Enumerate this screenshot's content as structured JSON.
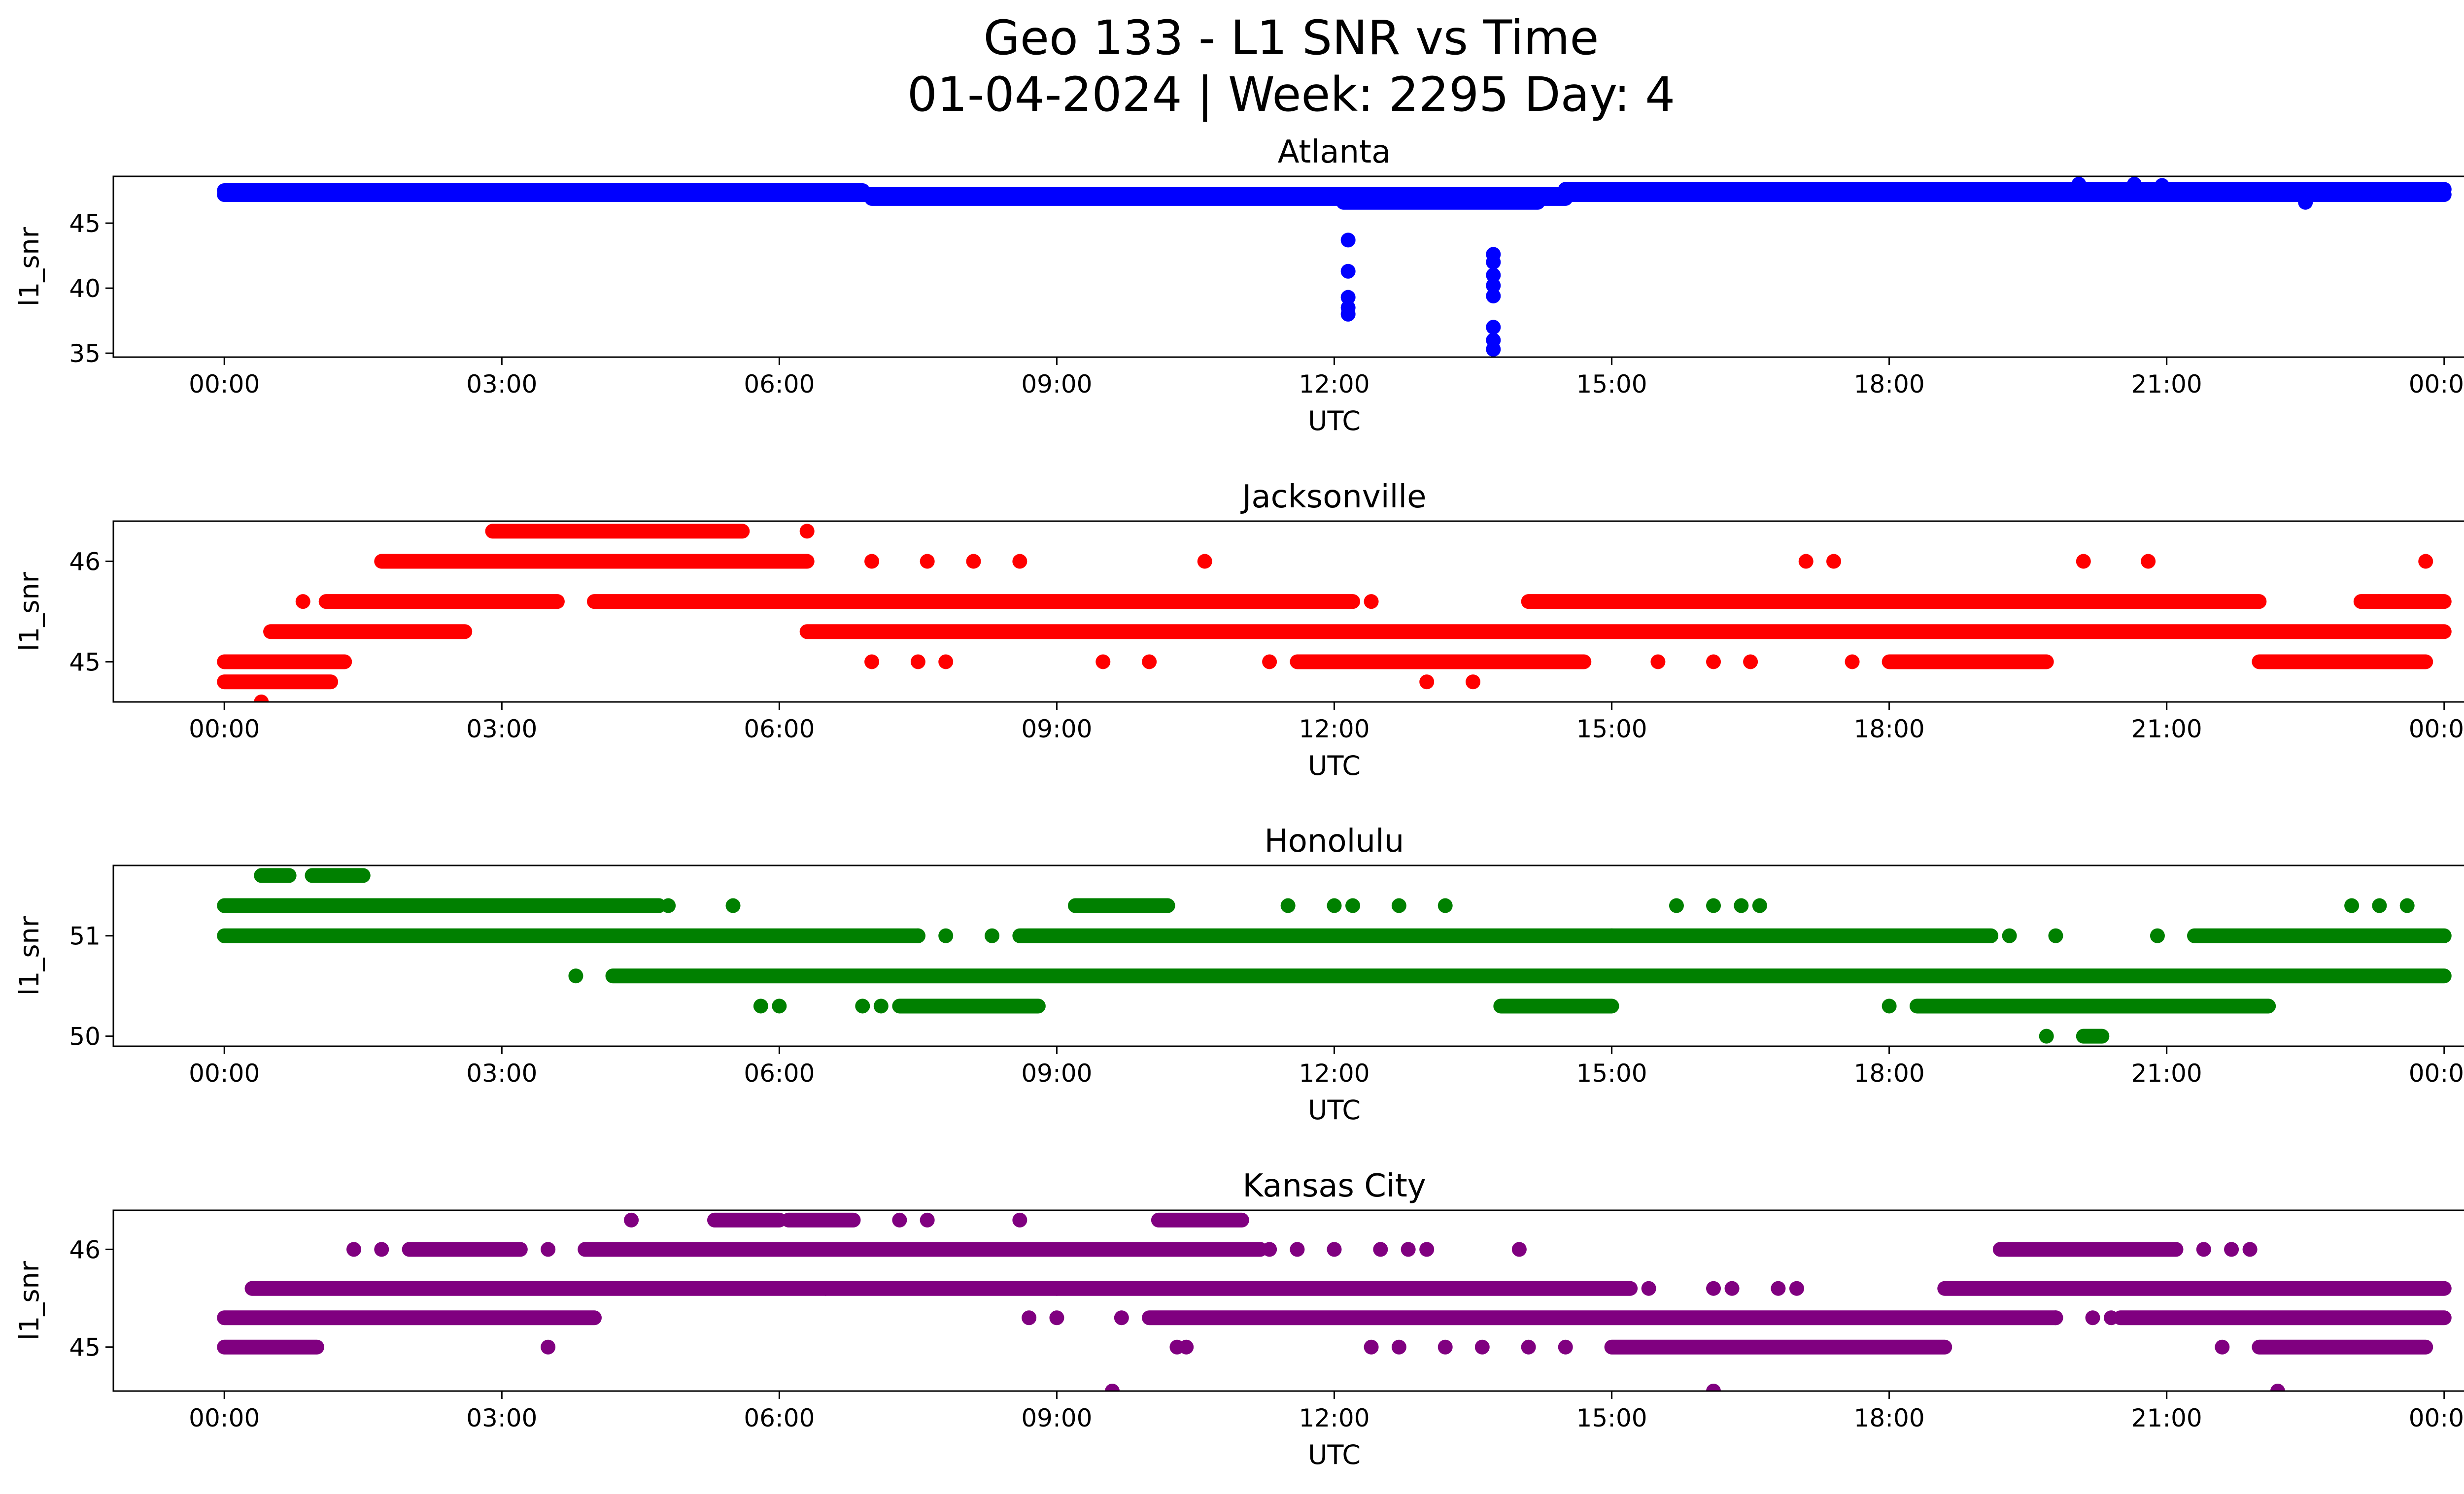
{
  "figure": {
    "title_line1": "Geo 133 - L1 SNR vs Time",
    "title_line2": "01-04-2024 | Week: 2295 Day: 4"
  },
  "chart_data": [
    {
      "type": "scatter",
      "title": "Atlanta",
      "xlabel": "UTC",
      "ylabel": "l1_snr",
      "color": "#0000ff",
      "xlim_hours": [
        -1.2,
        25.2
      ],
      "ylim": [
        34.7,
        48.6
      ],
      "yticks": [
        35,
        40,
        45
      ],
      "xticks": [
        "00:00",
        "03:00",
        "06:00",
        "09:00",
        "12:00",
        "15:00",
        "18:00",
        "21:00",
        "00:00"
      ],
      "bands": [
        {
          "y": 47.5,
          "ranges": [
            [
              0.0,
              6.9
            ]
          ]
        },
        {
          "y": 47.2,
          "ranges": [
            [
              0.0,
              24.0
            ]
          ]
        },
        {
          "y": 46.9,
          "ranges": [
            [
              7.0,
              14.5
            ]
          ]
        },
        {
          "y": 46.6,
          "ranges": [
            [
              12.1,
              14.2
            ]
          ]
        },
        {
          "y": 47.6,
          "ranges": [
            [
              14.5,
              24.0
            ]
          ]
        }
      ],
      "points": [
        {
          "x": 12.15,
          "y": 43.7
        },
        {
          "x": 12.15,
          "y": 41.3
        },
        {
          "x": 12.15,
          "y": 39.3
        },
        {
          "x": 12.15,
          "y": 38.5
        },
        {
          "x": 12.15,
          "y": 38.0
        },
        {
          "x": 13.72,
          "y": 42.6
        },
        {
          "x": 13.72,
          "y": 42.0
        },
        {
          "x": 13.72,
          "y": 41.0
        },
        {
          "x": 13.72,
          "y": 40.2
        },
        {
          "x": 13.72,
          "y": 39.4
        },
        {
          "x": 13.72,
          "y": 37.0
        },
        {
          "x": 13.72,
          "y": 36.0
        },
        {
          "x": 13.72,
          "y": 35.3
        },
        {
          "x": 20.05,
          "y": 48.0
        },
        {
          "x": 20.65,
          "y": 48.0
        },
        {
          "x": 20.95,
          "y": 47.9
        },
        {
          "x": 22.5,
          "y": 46.6
        }
      ]
    },
    {
      "type": "scatter",
      "title": "Jacksonville",
      "xlabel": "UTC",
      "ylabel": "l1_snr",
      "color": "#ff0000",
      "xlim_hours": [
        -1.2,
        25.2
      ],
      "ylim": [
        44.6,
        46.4
      ],
      "yticks": [
        45,
        46
      ],
      "xticks": [
        "00:00",
        "03:00",
        "06:00",
        "09:00",
        "12:00",
        "15:00",
        "18:00",
        "21:00",
        "00:00"
      ],
      "bands": [
        {
          "y": 44.8,
          "ranges": [
            [
              0.0,
              1.15
            ]
          ]
        },
        {
          "y": 45.0,
          "ranges": [
            [
              0.0,
              1.3
            ],
            [
              11.6,
              14.7
            ],
            [
              18.0,
              19.7
            ],
            [
              22.0,
              23.8
            ]
          ]
        },
        {
          "y": 45.3,
          "ranges": [
            [
              0.5,
              2.6
            ],
            [
              6.3,
              24.0
            ]
          ]
        },
        {
          "y": 45.6,
          "ranges": [
            [
              1.1,
              3.6
            ],
            [
              4.0,
              12.2
            ],
            [
              14.1,
              22.0
            ],
            [
              23.1,
              24.0
            ]
          ]
        },
        {
          "y": 46.0,
          "ranges": [
            [
              1.7,
              6.3
            ]
          ]
        },
        {
          "y": 46.3,
          "ranges": [
            [
              2.9,
              5.6
            ]
          ]
        }
      ],
      "points": [
        {
          "x": 0.4,
          "y": 44.6
        },
        {
          "x": 0.85,
          "y": 45.6
        },
        {
          "x": 6.3,
          "y": 46.3
        },
        {
          "x": 7.0,
          "y": 46.0
        },
        {
          "x": 7.6,
          "y": 46.0
        },
        {
          "x": 8.1,
          "y": 46.0
        },
        {
          "x": 8.6,
          "y": 46.0
        },
        {
          "x": 10.6,
          "y": 46.0
        },
        {
          "x": 12.4,
          "y": 45.6
        },
        {
          "x": 13.0,
          "y": 44.8
        },
        {
          "x": 13.5,
          "y": 44.8
        },
        {
          "x": 7.0,
          "y": 45.0
        },
        {
          "x": 7.5,
          "y": 45.0
        },
        {
          "x": 7.8,
          "y": 45.0
        },
        {
          "x": 9.5,
          "y": 45.0
        },
        {
          "x": 10.0,
          "y": 45.0
        },
        {
          "x": 11.3,
          "y": 45.0
        },
        {
          "x": 15.5,
          "y": 45.0
        },
        {
          "x": 16.1,
          "y": 45.0
        },
        {
          "x": 16.5,
          "y": 45.0
        },
        {
          "x": 17.1,
          "y": 46.0
        },
        {
          "x": 17.4,
          "y": 46.0
        },
        {
          "x": 17.6,
          "y": 45.0
        },
        {
          "x": 20.1,
          "y": 46.0
        },
        {
          "x": 20.8,
          "y": 46.0
        },
        {
          "x": 23.3,
          "y": 45.6
        },
        {
          "x": 23.4,
          "y": 45.0
        },
        {
          "x": 23.8,
          "y": 46.0
        }
      ]
    },
    {
      "type": "scatter",
      "title": "Honolulu",
      "xlabel": "UTC",
      "ylabel": "l1_snr",
      "color": "#008000",
      "xlim_hours": [
        -1.2,
        25.2
      ],
      "ylim": [
        49.9,
        51.7
      ],
      "yticks": [
        50,
        51
      ],
      "xticks": [
        "00:00",
        "03:00",
        "06:00",
        "09:00",
        "12:00",
        "15:00",
        "18:00",
        "21:00",
        "00:00"
      ],
      "bands": [
        {
          "y": 51.6,
          "ranges": [
            [
              0.4,
              0.7
            ],
            [
              0.95,
              1.5
            ]
          ]
        },
        {
          "y": 51.3,
          "ranges": [
            [
              0.0,
              4.7
            ],
            [
              9.2,
              10.2
            ]
          ]
        },
        {
          "y": 51.0,
          "ranges": [
            [
              0.0,
              7.5
            ],
            [
              8.6,
              15.0
            ],
            [
              15.0,
              19.1
            ],
            [
              21.3,
              24.0
            ]
          ]
        },
        {
          "y": 50.6,
          "ranges": [
            [
              4.2,
              24.0
            ]
          ]
        },
        {
          "y": 50.3,
          "ranges": [
            [
              7.3,
              8.8
            ],
            [
              13.8,
              15.0
            ],
            [
              18.3,
              22.1
            ]
          ]
        },
        {
          "y": 50.0,
          "ranges": [
            [
              20.1,
              20.3
            ]
          ]
        }
      ],
      "points": [
        {
          "x": 4.8,
          "y": 51.3
        },
        {
          "x": 5.5,
          "y": 51.3
        },
        {
          "x": 3.8,
          "y": 50.6
        },
        {
          "x": 5.8,
          "y": 50.3
        },
        {
          "x": 6.0,
          "y": 50.3
        },
        {
          "x": 6.9,
          "y": 50.3
        },
        {
          "x": 7.1,
          "y": 50.3
        },
        {
          "x": 7.5,
          "y": 51.0
        },
        {
          "x": 7.8,
          "y": 51.0
        },
        {
          "x": 8.3,
          "y": 51.0
        },
        {
          "x": 11.5,
          "y": 51.3
        },
        {
          "x": 12.0,
          "y": 51.3
        },
        {
          "x": 12.2,
          "y": 51.3
        },
        {
          "x": 12.7,
          "y": 51.3
        },
        {
          "x": 13.2,
          "y": 51.3
        },
        {
          "x": 15.7,
          "y": 51.3
        },
        {
          "x": 16.1,
          "y": 51.3
        },
        {
          "x": 16.4,
          "y": 51.3
        },
        {
          "x": 16.6,
          "y": 51.3
        },
        {
          "x": 19.3,
          "y": 51.0
        },
        {
          "x": 19.8,
          "y": 51.0
        },
        {
          "x": 19.7,
          "y": 50.0
        },
        {
          "x": 20.9,
          "y": 51.0
        },
        {
          "x": 23.0,
          "y": 51.3
        },
        {
          "x": 23.3,
          "y": 51.3
        },
        {
          "x": 23.6,
          "y": 51.3
        },
        {
          "x": 18.0,
          "y": 50.3
        }
      ]
    },
    {
      "type": "scatter",
      "title": "Kansas City",
      "xlabel": "UTC",
      "ylabel": "l1_snr",
      "color": "#800080",
      "xlim_hours": [
        -1.2,
        25.2
      ],
      "ylim": [
        44.55,
        46.4
      ],
      "yticks": [
        45,
        46
      ],
      "xticks": [
        "00:00",
        "03:00",
        "06:00",
        "09:00",
        "12:00",
        "15:00",
        "18:00",
        "21:00",
        "00:00"
      ],
      "bands": [
        {
          "y": 45.0,
          "ranges": [
            [
              0.0,
              1.0
            ],
            [
              15.0,
              18.6
            ],
            [
              22.0,
              23.8
            ]
          ]
        },
        {
          "y": 45.3,
          "ranges": [
            [
              0.0,
              4.0
            ],
            [
              10.0,
              19.8
            ],
            [
              20.5,
              24.0
            ]
          ]
        },
        {
          "y": 45.6,
          "ranges": [
            [
              0.3,
              9.0
            ],
            [
              9.0,
              15.2
            ],
            [
              18.6,
              24.0
            ]
          ]
        },
        {
          "y": 46.0,
          "ranges": [
            [
              2.0,
              3.2
            ],
            [
              3.9,
              11.2
            ],
            [
              19.2,
              21.1
            ]
          ]
        },
        {
          "y": 46.3,
          "ranges": [
            [
              5.3,
              6.0
            ],
            [
              6.1,
              6.8
            ],
            [
              10.1,
              11.0
            ]
          ]
        }
      ],
      "points": [
        {
          "x": 1.4,
          "y": 46.0
        },
        {
          "x": 1.7,
          "y": 46.0
        },
        {
          "x": 3.5,
          "y": 46.0
        },
        {
          "x": 3.5,
          "y": 45.0
        },
        {
          "x": 4.4,
          "y": 46.3
        },
        {
          "x": 7.3,
          "y": 46.3
        },
        {
          "x": 7.6,
          "y": 46.3
        },
        {
          "x": 8.6,
          "y": 46.3
        },
        {
          "x": 6.5,
          "y": 45.6
        },
        {
          "x": 8.7,
          "y": 45.3
        },
        {
          "x": 9.0,
          "y": 45.3
        },
        {
          "x": 9.6,
          "y": 44.55
        },
        {
          "x": 9.7,
          "y": 45.3
        },
        {
          "x": 10.3,
          "y": 45.0
        },
        {
          "x": 10.4,
          "y": 45.0
        },
        {
          "x": 11.3,
          "y": 46.0
        },
        {
          "x": 11.6,
          "y": 46.0
        },
        {
          "x": 12.0,
          "y": 46.0
        },
        {
          "x": 12.5,
          "y": 46.0
        },
        {
          "x": 12.8,
          "y": 46.0
        },
        {
          "x": 13.0,
          "y": 46.0
        },
        {
          "x": 14.0,
          "y": 46.0
        },
        {
          "x": 12.4,
          "y": 45.0
        },
        {
          "x": 12.7,
          "y": 45.0
        },
        {
          "x": 13.2,
          "y": 45.0
        },
        {
          "x": 13.6,
          "y": 45.0
        },
        {
          "x": 14.1,
          "y": 45.0
        },
        {
          "x": 14.5,
          "y": 45.0
        },
        {
          "x": 15.4,
          "y": 45.6
        },
        {
          "x": 16.1,
          "y": 45.6
        },
        {
          "x": 16.3,
          "y": 45.6
        },
        {
          "x": 16.1,
          "y": 44.55
        },
        {
          "x": 16.8,
          "y": 45.6
        },
        {
          "x": 17.0,
          "y": 45.6
        },
        {
          "x": 19.8,
          "y": 45.3
        },
        {
          "x": 20.2,
          "y": 45.3
        },
        {
          "x": 20.4,
          "y": 45.3
        },
        {
          "x": 21.4,
          "y": 46.0
        },
        {
          "x": 21.7,
          "y": 46.0
        },
        {
          "x": 21.9,
          "y": 46.0
        },
        {
          "x": 21.6,
          "y": 45.0
        },
        {
          "x": 22.2,
          "y": 44.55
        }
      ]
    }
  ]
}
